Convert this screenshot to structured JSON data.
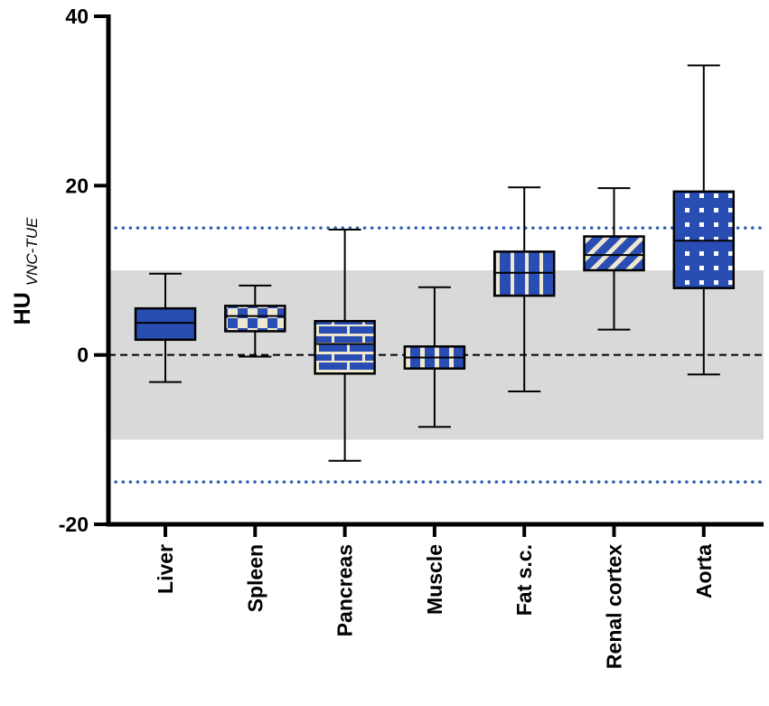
{
  "chart_data": {
    "type": "box",
    "title": "",
    "ylabel": "HU",
    "ylabel_subscript": "VNC-TUE",
    "xlabel": "",
    "ylim": [
      -20,
      40
    ],
    "yticks": [
      -20,
      0,
      20,
      40
    ],
    "ytick_labels": [
      "-20",
      "0",
      "20",
      "40"
    ],
    "categories": [
      "Liver",
      "Spleen",
      "Pancreas",
      "Muscle",
      "Fat s.c.",
      "Renal cortex",
      "Aorta"
    ],
    "boxes": [
      {
        "name": "Liver",
        "min": -3.2,
        "q1": 1.8,
        "median": 3.8,
        "q3": 5.5,
        "max": 9.6,
        "pattern": "hline"
      },
      {
        "name": "Spleen",
        "min": -0.2,
        "q1": 2.8,
        "median": 4.6,
        "q3": 5.8,
        "max": 8.2,
        "pattern": "checker"
      },
      {
        "name": "Pancreas",
        "min": -12.5,
        "q1": -2.2,
        "median": 1.3,
        "q3": 4.0,
        "max": 14.8,
        "pattern": "brick"
      },
      {
        "name": "Muscle",
        "min": -8.5,
        "q1": -1.6,
        "median": -0.3,
        "q3": 1.0,
        "max": 8.0,
        "pattern": "grid"
      },
      {
        "name": "Fat s.c.",
        "min": -4.3,
        "q1": 7.0,
        "median": 9.7,
        "q3": 12.2,
        "max": 19.8,
        "pattern": "vline"
      },
      {
        "name": "Renal cortex",
        "min": 3.0,
        "q1": 10.0,
        "median": 11.8,
        "q3": 14.0,
        "max": 19.7,
        "pattern": "diagonal"
      },
      {
        "name": "Aorta",
        "min": -2.3,
        "q1": 7.9,
        "median": 13.5,
        "q3": 19.3,
        "max": 34.2,
        "pattern": "dots"
      }
    ],
    "reference_lines": [
      {
        "value": 0,
        "style": "dashed",
        "color": "#000000"
      },
      {
        "value": 15,
        "style": "dotted",
        "color": "#2f5fb0"
      },
      {
        "value": -15,
        "style": "dotted",
        "color": "#2f5fb0"
      }
    ],
    "shaded_band": {
      "from": -10,
      "to": 10,
      "color": "#d9d9d9"
    },
    "colors": {
      "box_fill": "#2a4db3",
      "pattern": "#efe8d0",
      "outline": "#000000"
    }
  }
}
